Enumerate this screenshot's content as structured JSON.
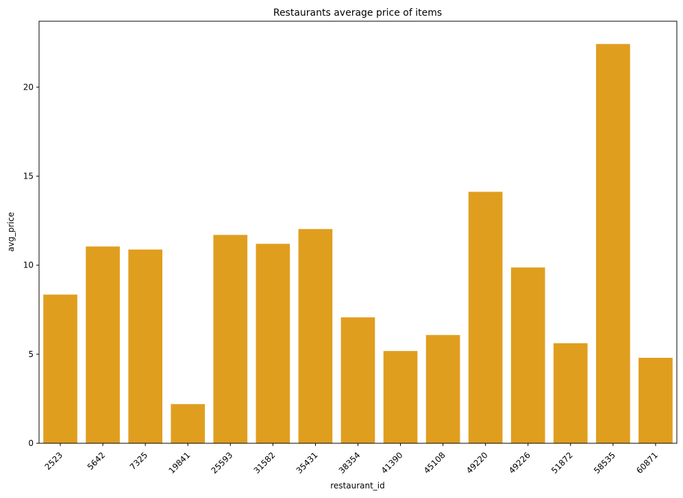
{
  "chart_data": {
    "type": "bar",
    "title": "Restaurants average price of items",
    "xlabel": "restaurant_id",
    "ylabel": "avg_price",
    "categories": [
      "2523",
      "5642",
      "7325",
      "19841",
      "25593",
      "31582",
      "35431",
      "38354",
      "41390",
      "45108",
      "49220",
      "49226",
      "51872",
      "58535",
      "60871"
    ],
    "values": [
      8.35,
      11.05,
      10.88,
      2.2,
      11.7,
      11.2,
      12.03,
      7.07,
      5.18,
      6.08,
      14.12,
      9.87,
      5.62,
      22.42,
      4.8
    ],
    "ylim": [
      0,
      23.7
    ],
    "yticks": [
      0,
      5,
      10,
      15,
      20
    ],
    "bar_color": "#e09e1f",
    "grid": false,
    "legend": "none"
  }
}
